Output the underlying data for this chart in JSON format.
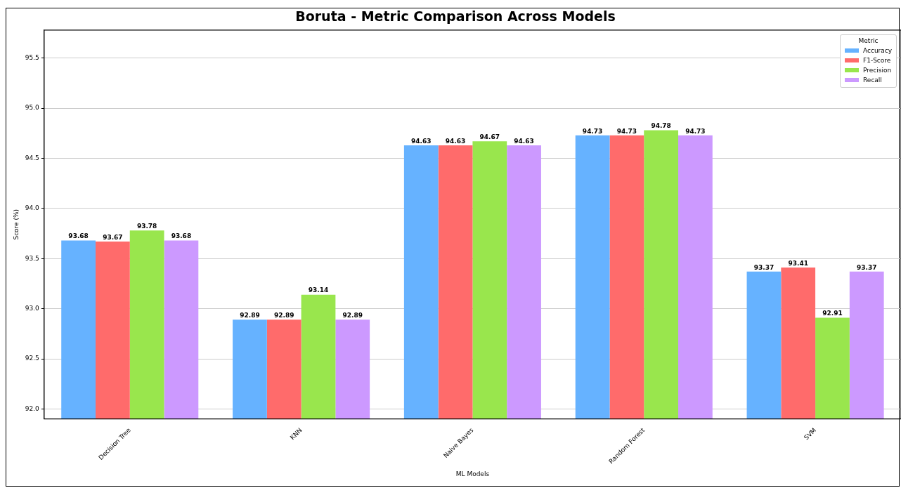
{
  "chart_data": {
    "type": "bar",
    "title": "Boruta - Metric Comparison Across Models",
    "xlabel": "ML Models",
    "ylabel": "Score (%)",
    "legend_title": "Metric",
    "categories": [
      "Decision Tree",
      "KNN",
      "Naive Bayes",
      "Random Forest",
      "SVM"
    ],
    "series": [
      {
        "name": "Accuracy",
        "color": "#66b2ff",
        "values": [
          93.68,
          92.89,
          94.63,
          94.73,
          93.37
        ]
      },
      {
        "name": "F1-Score",
        "color": "#ff6b6b",
        "values": [
          93.67,
          92.89,
          94.63,
          94.73,
          93.41
        ]
      },
      {
        "name": "Precision",
        "color": "#99e64d",
        "values": [
          93.78,
          93.14,
          94.67,
          94.78,
          92.91
        ]
      },
      {
        "name": "Recall",
        "color": "#cc99ff",
        "values": [
          93.68,
          92.89,
          94.63,
          94.73,
          93.37
        ]
      }
    ],
    "ylim": [
      91.9,
      95.78
    ],
    "yticks": [
      {
        "value": 92,
        "label": "92.0"
      },
      92.5,
      {
        "value": 93,
        "label": "93.0"
      },
      93.5,
      {
        "value": 94,
        "label": "94.0"
      },
      94.5,
      {
        "value": 95,
        "label": "95.0"
      },
      95.5
    ],
    "grid": "y",
    "legend": "top right",
    "data_labels": true
  }
}
